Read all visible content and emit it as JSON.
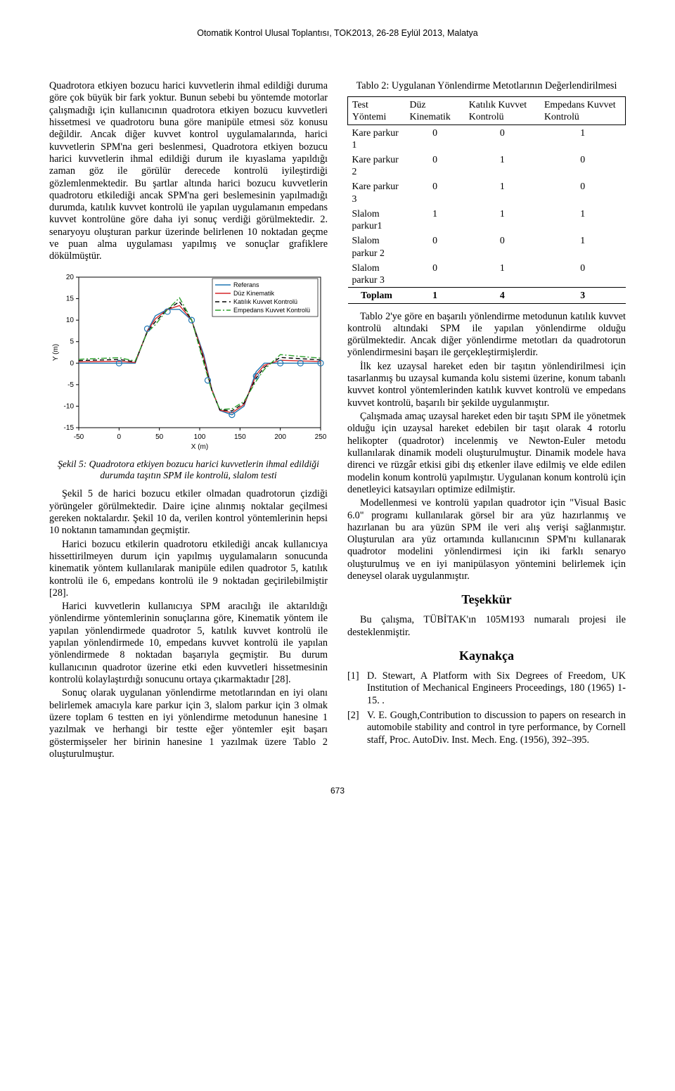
{
  "header": "Otomatik Kontrol Ulusal Toplantısı, TOK2013, 26-28 Eylül 2013, Malatya",
  "page_number": "673",
  "left_column": {
    "para1": "Quadrotora etkiyen bozucu harici kuvvetlerin ihmal edildiği duruma göre çok büyük bir fark yoktur. Bunun sebebi bu yöntemde motorlar çalışmadığı için kullanıcının quadrotora etkiyen bozucu kuvvetleri hissetmesi ve quadrotoru buna göre manipüle etmesi söz konusu değildir. Ancak diğer kuvvet kontrol uygulamalarında, harici kuvvetlerin SPM'na geri beslenmesi, Quadrotora etkiyen bozucu harici kuvvetlerin ihmal edildiği durum ile kıyaslama yapıldığı zaman göz ile görülür derecede kontrolü iyileştirdiği gözlemlenmektedir. Bu şartlar altında harici bozucu kuvvetlerin quadrotoru etkilediği ancak SPM'na geri beslemesinin yapılmadığı durumda, katılık kuvvet kontrolü ile yapılan uygulamanın empedans kuvvet kontrolüne göre daha iyi sonuç verdiği görülmektedir. 2. senaryoyu oluşturan parkur üzerinde belirlenen 10 noktadan geçme ve puan alma uygulaması yapılmış ve sonuçlar grafiklere dökülmüştür.",
    "figure": {
      "caption_title": "Şekil 5: Quadrotora etkiyen bozucu harici kuvvetlerin ihmal edildiği durumda taşıtın SPM ile kontrolü, slalom testi",
      "xlim": [
        -50,
        250
      ],
      "ylim": [
        -15,
        20
      ],
      "xticks": [
        -50,
        0,
        50,
        100,
        150,
        200,
        250
      ],
      "yticks": [
        -15,
        -10,
        -5,
        0,
        5,
        10,
        15,
        20
      ],
      "xlabel": "X (m)",
      "ylabel": "Y (m)",
      "bg": "#ffffff",
      "grid_color": "#bfbfbf",
      "axis_color": "#000000",
      "legend_bg": "#ffffff",
      "legend_border": "#000000",
      "series": [
        {
          "name": "Referans",
          "color": "#1f77b4",
          "style": "solid",
          "width": 1.4,
          "legend": "Referans"
        },
        {
          "name": "Düz Kinematik",
          "color": "#d62728",
          "style": "solid",
          "width": 1.4,
          "legend": "Düz Kinematik"
        },
        {
          "name": "Katılık Kuvvet Kontrolü",
          "color": "#000000",
          "style": "dash",
          "width": 1.4,
          "legend": "Katılık Kuvvet Kontrolü"
        },
        {
          "name": "Empedans Kuvvet Kontrolü",
          "color": "#2ca02c",
          "style": "dashdot",
          "width": 1.4,
          "legend": "Empedans Kuvvet Kontrolü"
        }
      ],
      "reference_points": [
        [
          -50,
          0
        ],
        [
          0,
          0
        ],
        [
          20,
          0
        ],
        [
          35,
          7.5
        ],
        [
          45,
          11
        ],
        [
          60,
          12.5
        ],
        [
          75,
          12.5
        ],
        [
          90,
          10
        ],
        [
          105,
          2
        ],
        [
          115,
          -6
        ],
        [
          125,
          -11
        ],
        [
          140,
          -12
        ],
        [
          155,
          -10
        ],
        [
          170,
          -2
        ],
        [
          180,
          0
        ],
        [
          200,
          0
        ],
        [
          250,
          0
        ]
      ],
      "targets": [
        [
          0,
          0
        ],
        [
          35,
          8
        ],
        [
          60,
          12
        ],
        [
          90,
          10
        ],
        [
          110,
          -4
        ],
        [
          140,
          -12
        ],
        [
          170,
          -3
        ],
        [
          200,
          0
        ],
        [
          225,
          0
        ],
        [
          250,
          0
        ]
      ]
    },
    "para2": "Şekil 5 de harici bozucu etkiler olmadan quadrotorun çizdiği yörüngeler görülmektedir. Daire içine alınmış noktalar geçilmesi gereken noktalardır. Şekil 10 da, verilen kontrol yöntemlerinin hepsi 10 noktanın tamamından geçmiştir.",
    "para3": "Harici bozucu etkilerin quadrotoru etkilediği ancak kullanıcıya hissettirilmeyen durum için yapılmış uygulamaların sonucunda kinematik yöntem kullanılarak manipüle edilen quadrotor 5, katılık kontrolü ile 6, empedans kontrolü ile 9 noktadan geçirilebilmiştir [28].",
    "para4": "Harici kuvvetlerin kullanıcıya SPM aracılığı ile aktarıldığı yönlendirme yöntemlerinin sonuçlarına göre, Kinematik yöntem ile yapılan yönlendirmede quadrotor 5, katılık kuvvet kontrolü ile yapılan yönlendirmede 10, empedans kuvvet kontrolü ile yapılan yönlendirmede 8 noktadan başarıyla geçmiştir. Bu durum kullanıcının quadrotor üzerine etki eden kuvvetleri hissetmesinin kontrolü kolaylaştırdığı sonucunu ortaya çıkarmaktadır [28].",
    "para5": "Sonuç olarak uygulanan yönlendirme metotlarından en iyi olanı belirlemek amacıyla kare parkur için 3, slalom parkur için 3 olmak üzere toplam 6 testten en iyi yönlendirme metodunun hanesine 1 yazılmak ve herhangi bir testte eğer yöntemler eşit başarı göstermişseler her birinin hanesine 1 yazılmak üzere Tablo 2 oluşturulmuştur."
  },
  "right_column": {
    "table_caption": "Tablo 2: Uygulanan Yönlendirme Metotlarının Değerlendirilmesi",
    "table": {
      "headers": [
        "Test Yöntemi",
        "Düz Kinematik",
        "Katılık Kuvvet Kontrolü",
        "Empedans Kuvvet Kontrolü"
      ],
      "rows": [
        [
          "Kare parkur 1",
          "0",
          "0",
          "1"
        ],
        [
          "Kare parkur 2",
          "0",
          "1",
          "0"
        ],
        [
          "Kare parkur 3",
          "0",
          "1",
          "0"
        ],
        [
          "Slalom parkur1",
          "1",
          "1",
          "1"
        ],
        [
          "Slalom parkur 2",
          "0",
          "0",
          "1"
        ],
        [
          "Slalom parkur 3",
          "0",
          "1",
          "0"
        ]
      ],
      "total": [
        "Toplam",
        "1",
        "4",
        "3"
      ]
    },
    "para1": "Tablo 2'ye göre en başarılı yönlendirme metodunun katılık kuvvet kontrolü altındaki SPM ile yapılan yönlendirme olduğu görülmektedir. Ancak diğer yönlendirme metotları da quadrotorun yönlendirmesini başarı ile gerçekleştirmişlerdir.",
    "para2": "İlk kez uzaysal hareket eden bir taşıtın yönlendirilmesi için tasarlanmış bu uzaysal kumanda kolu sistemi üzerine, konum tabanlı kuvvet kontrol yöntemlerinden katılık kuvvet kontrolü ve empedans kuvvet kontrolü, başarılı bir şekilde uygulanmıştır.",
    "para3": "Çalışmada amaç uzaysal hareket eden bir taşıtı SPM ile yönetmek olduğu için uzaysal hareket edebilen bir taşıt olarak 4 rotorlu helikopter (quadrotor) incelenmiş ve Newton-Euler metodu kullanılarak dinamik modeli oluşturulmuştur. Dinamik modele hava direnci ve rüzgâr etkisi gibi dış etkenler ilave edilmiş ve elde edilen modelin konum kontrolü yapılmıştır. Uygulanan konum kontrolü için denetleyici katsayıları optimize edilmiştir.",
    "para4": "Modellenmesi ve kontrolü yapılan quadrotor için \"Visual Basic 6.0\" programı kullanılarak görsel bir ara yüz hazırlanmış ve hazırlanan bu ara yüzün SPM ile veri alış verişi sağlanmıştır. Oluşturulan ara yüz ortamında kullanıcının SPM'nı kullanarak quadrotor modelini yönlendirmesi için iki farklı senaryo oluşturulmuş ve en iyi manipülasyon yöntemini belirlemek için deneysel olarak uygulanmıştır.",
    "thanks_heading": "Teşekkür",
    "thanks_text": "Bu çalışma, TÜBİTAK'ın 105M193 numaralı projesi ile desteklenmiştir.",
    "refs_heading": "Kaynakça",
    "refs": [
      {
        "num": "[1]",
        "text": "D. Stewart, A Platform with Six Degrees of Freedom, UK Institution of Mechanical Engineers Proceedings, 180 (1965) 1-15. ."
      },
      {
        "num": "[2]",
        "text": "V. E. Gough,Contribution to discussion to papers on research in automobile stability and control in tyre performance, by Cornell staff, Proc. AutoDiv. Inst. Mech. Eng. (1956), 392–395."
      }
    ]
  }
}
